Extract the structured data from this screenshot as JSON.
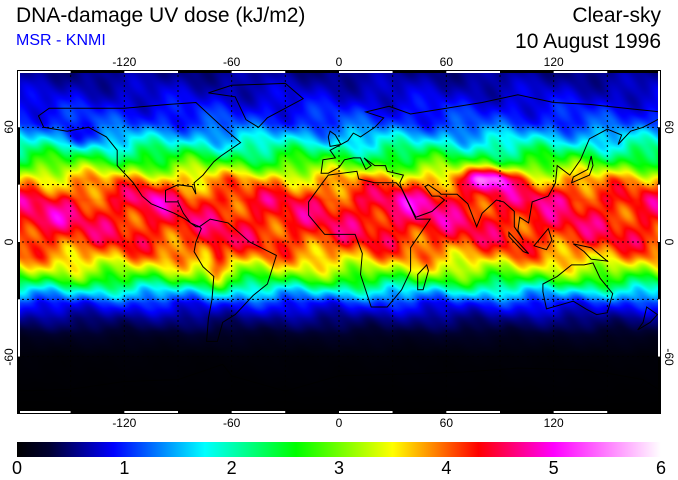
{
  "header": {
    "title": "DNA-damage UV dose (kJ/m2)",
    "source": "MSR - KNMI",
    "condition": "Clear-sky",
    "date": "10 August 1996"
  },
  "map": {
    "projection": "equirectangular",
    "lon_range": [
      -180,
      180
    ],
    "lat_range": [
      -90,
      90
    ],
    "lon_ticks": [
      "-120",
      "-60",
      "0",
      "60",
      "120"
    ],
    "lat_ticks": [
      "60",
      "0",
      "-60"
    ],
    "grid_spacing_deg": 30
  },
  "colorbar": {
    "ticks": [
      "0",
      "1",
      "2",
      "3",
      "4",
      "5",
      "6"
    ],
    "range": [
      0,
      6
    ],
    "stops": [
      {
        "value": 0,
        "color": "#000000"
      },
      {
        "value": 0.3,
        "color": "#000030"
      },
      {
        "value": 0.9,
        "color": "#0000ff"
      },
      {
        "value": 1.75,
        "color": "#00ffff"
      },
      {
        "value": 2.6,
        "color": "#00ff00"
      },
      {
        "value": 3.5,
        "color": "#ffff00"
      },
      {
        "value": 4.3,
        "color": "#ff0000"
      },
      {
        "value": 5.0,
        "color": "#ff00ff"
      },
      {
        "value": 6.0,
        "color": "#ffffff"
      }
    ]
  }
}
